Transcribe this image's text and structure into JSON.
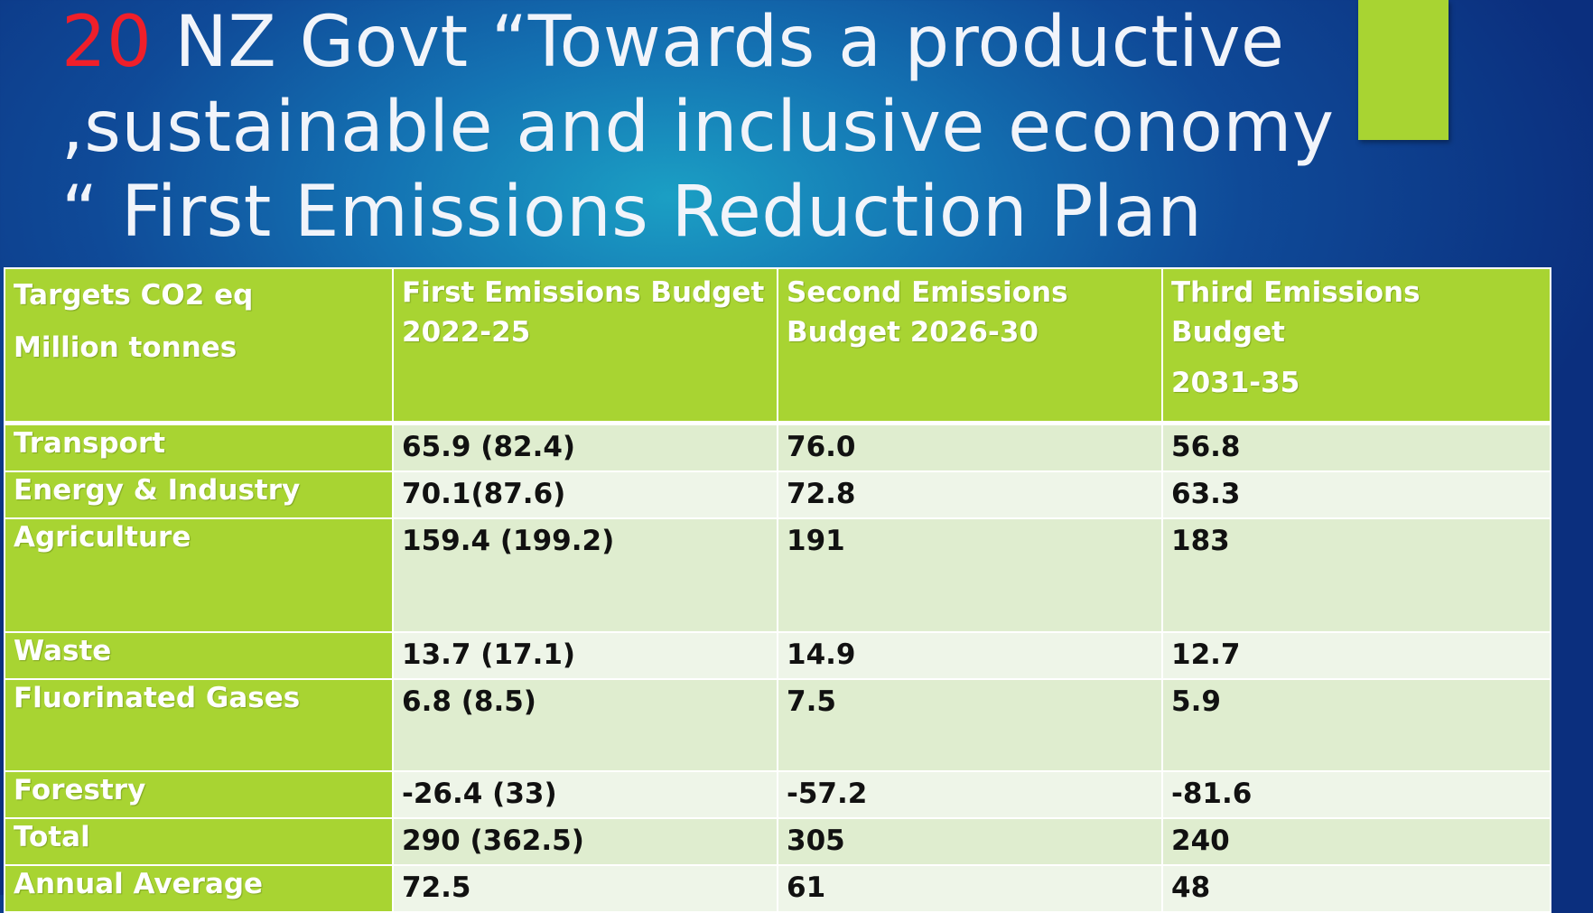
{
  "title": {
    "number": "20",
    "line1_rest": " NZ Govt “Towards a productive",
    "line2": ",sustainable and inclusive economy",
    "line3": "“ First Emissions Reduction Plan"
  },
  "colors": {
    "accent_green": "#a8d432",
    "title_number_red": "#ef1f2a",
    "background_blue": "#0f4a98",
    "row_light_1": "#dfedcf",
    "row_light_2": "#eef5e8"
  },
  "table": {
    "header": {
      "col0_line1": "Targets CO2 eq",
      "col0_line2": "Million tonnes",
      "col1_line1": "First Emissions Budget",
      "col1_line2": "2022-25",
      "col2_line1": "Second Emissions",
      "col2_line2": "Budget 2026-30",
      "col3_line1": "Third Emissions Budget",
      "col3_line2": "2031-35"
    },
    "rows": [
      {
        "label": "Transport",
        "first": "65.9 (82.4)",
        "second": "76.0",
        "third": "56.8"
      },
      {
        "label": "Energy & Industry",
        "first": "70.1(87.6)",
        "second": "72.8",
        "third": "63.3"
      },
      {
        "label": "Agriculture",
        "first": "159.4 (199.2)",
        "second": "191",
        "third": "183"
      },
      {
        "label": "Waste",
        "first": "13.7 (17.1)",
        "second": "14.9",
        "third": "12.7"
      },
      {
        "label": "Fluorinated Gases",
        "first": "6.8 (8.5)",
        "second": "7.5",
        "third": "5.9"
      },
      {
        "label": "Forestry",
        "first": "-26.4 (33)",
        "second": "-57.2",
        "third": "-81.6"
      },
      {
        "label": "Total",
        "first": "290 (362.5)",
        "second": "305",
        "third": "240"
      },
      {
        "label": "Annual Average",
        "first": "72.5",
        "second": "61",
        "third": "48"
      }
    ]
  }
}
